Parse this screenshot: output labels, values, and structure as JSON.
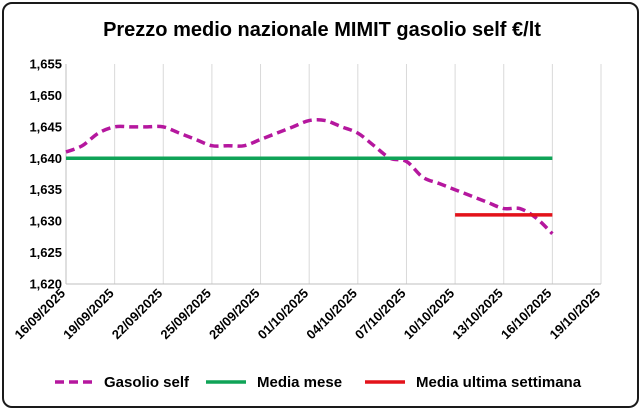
{
  "chart_data": {
    "type": "line",
    "title": "Prezzo medio nazionale MIMIT gasolio self €/lt",
    "xlabel": "",
    "ylabel": "",
    "ylim": [
      1.62,
      1.655
    ],
    "y_ticks": [
      1.62,
      1.625,
      1.63,
      1.635,
      1.64,
      1.645,
      1.65,
      1.655
    ],
    "y_tick_labels": [
      "1,620",
      "1,625",
      "1,630",
      "1,635",
      "1,640",
      "1,645",
      "1,650",
      "1,655"
    ],
    "x_ticks": [
      "2025-09-16",
      "2025-09-19",
      "2025-09-22",
      "2025-09-25",
      "2025-09-28",
      "2025-10-01",
      "2025-10-04",
      "2025-10-07",
      "2025-10-10",
      "2025-10-13",
      "2025-10-16",
      "2025-10-19"
    ],
    "x_tick_labels": [
      "16/09/2025",
      "19/09/2025",
      "22/09/2025",
      "25/09/2025",
      "28/09/2025",
      "01/10/2025",
      "04/10/2025",
      "07/10/2025",
      "10/10/2025",
      "13/10/2025",
      "16/10/2025",
      "19/10/2025"
    ],
    "xlim": [
      "2025-09-16",
      "2025-10-19"
    ],
    "grid": "vertical",
    "legend_position": "bottom",
    "series": [
      {
        "name": "Gasolio self",
        "color": "#b5179e",
        "style": "dashed",
        "x": [
          "2025-09-16",
          "2025-09-17",
          "2025-09-18",
          "2025-09-19",
          "2025-09-20",
          "2025-09-21",
          "2025-09-22",
          "2025-09-23",
          "2025-09-24",
          "2025-09-25",
          "2025-09-26",
          "2025-09-27",
          "2025-09-28",
          "2025-09-29",
          "2025-09-30",
          "2025-10-01",
          "2025-10-02",
          "2025-10-03",
          "2025-10-04",
          "2025-10-05",
          "2025-10-06",
          "2025-10-07",
          "2025-10-08",
          "2025-10-09",
          "2025-10-10",
          "2025-10-11",
          "2025-10-12",
          "2025-10-13",
          "2025-10-14",
          "2025-10-15",
          "2025-10-16"
        ],
        "y": [
          1.641,
          1.642,
          1.644,
          1.645,
          1.645,
          1.645,
          1.645,
          1.644,
          1.643,
          1.642,
          1.642,
          1.642,
          1.643,
          1.644,
          1.645,
          1.646,
          1.646,
          1.645,
          1.644,
          1.642,
          1.64,
          1.6395,
          1.637,
          1.636,
          1.635,
          1.634,
          1.633,
          1.632,
          1.632,
          1.6305,
          1.628
        ]
      },
      {
        "name": "Media mese",
        "color": "#0fa357",
        "style": "solid",
        "x": [
          "2025-09-16",
          "2025-10-16"
        ],
        "y": [
          1.64,
          1.64
        ]
      },
      {
        "name": "Media ultima settimana",
        "color": "#e3121a",
        "style": "solid",
        "x": [
          "2025-10-10",
          "2025-10-16"
        ],
        "y": [
          1.631,
          1.631
        ]
      }
    ]
  }
}
